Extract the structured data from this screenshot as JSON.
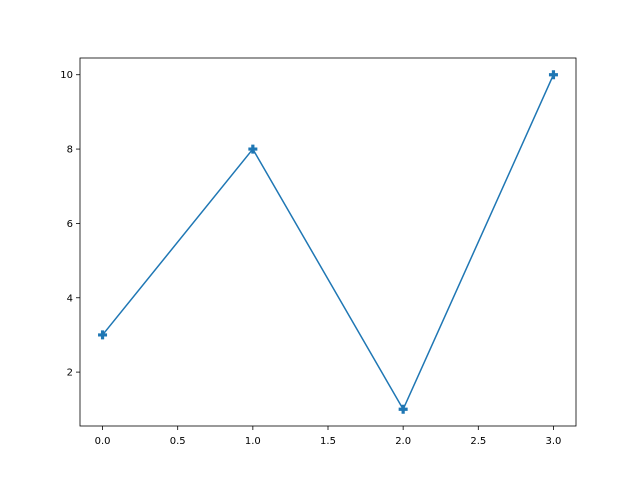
{
  "chart_data": {
    "type": "line",
    "x": [
      0,
      1,
      2,
      3
    ],
    "series": [
      {
        "values": [
          3,
          8,
          1,
          10
        ],
        "color": "#1f77b4",
        "marker": "filled-plus"
      }
    ],
    "xlim": [
      -0.15,
      3.15
    ],
    "ylim": [
      0.55,
      10.45
    ],
    "xticks": [
      "0.0",
      "0.5",
      "1.0",
      "1.5",
      "2.0",
      "2.5",
      "3.0"
    ],
    "yticks": [
      "2",
      "4",
      "6",
      "8",
      "10"
    ],
    "grid": false
  }
}
